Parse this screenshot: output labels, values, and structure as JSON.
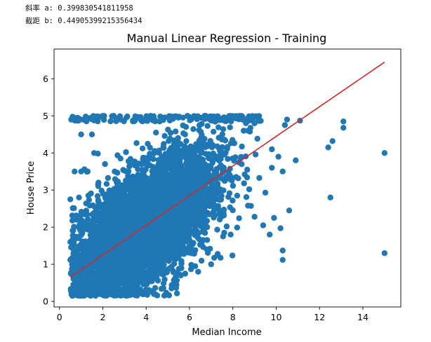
{
  "output": {
    "slope_line": "斜率 a: 0.399830541811958",
    "intercept_line": "截距 b: 0.44905399215356434"
  },
  "chart_data": {
    "type": "scatter",
    "title": "Manual Linear Regression - Training",
    "xlabel": "Median Income",
    "ylabel": "House Price",
    "xlim": [
      -0.25,
      15.75
    ],
    "ylim": [
      -0.15,
      6.8
    ],
    "xticks": [
      0,
      2,
      4,
      6,
      8,
      10,
      12,
      14
    ],
    "yticks": [
      0,
      1,
      2,
      3,
      4,
      5,
      6
    ],
    "point_color": "#1f77b4",
    "line_color": "#d62728",
    "regression_line": {
      "slope": 0.399830541811958,
      "intercept": 0.44905399215356434,
      "x": [
        0.5,
        15.0
      ]
    },
    "outliers": [
      [
        15.0,
        4.0
      ],
      [
        15.0,
        1.3
      ],
      [
        13.1,
        4.85
      ],
      [
        13.1,
        4.68
      ],
      [
        12.6,
        4.32
      ],
      [
        12.4,
        4.15
      ],
      [
        12.5,
        2.8
      ],
      [
        11.1,
        4.87
      ],
      [
        10.9,
        3.8
      ],
      [
        10.6,
        2.45
      ],
      [
        10.3,
        1.12
      ],
      [
        10.3,
        1.37
      ],
      [
        10.2,
        1.97
      ],
      [
        10.3,
        3.5
      ],
      [
        10.1,
        3.9
      ],
      [
        9.8,
        3.6
      ],
      [
        9.9,
        2.25
      ],
      [
        9.7,
        1.8
      ],
      [
        9.5,
        2.93
      ],
      [
        9.4,
        2.05
      ],
      [
        9.0,
        2.28
      ],
      [
        8.7,
        2.58
      ],
      [
        8.2,
        2.85
      ],
      [
        9.8,
        4.1
      ],
      [
        10.5,
        4.9
      ],
      [
        10.4,
        4.75
      ],
      [
        1.0,
        4.5
      ],
      [
        1.5,
        4.5
      ],
      [
        1.3,
        3.5
      ],
      [
        0.5,
        2.75
      ],
      [
        0.5,
        1.6
      ],
      [
        0.6,
        0.15
      ],
      [
        1.1,
        0.3
      ],
      [
        1.9,
        0.2
      ],
      [
        2.5,
        0.27
      ],
      [
        3.0,
        0.28
      ],
      [
        3.5,
        0.4
      ],
      [
        4.0,
        0.32
      ],
      [
        5.4,
        0.45
      ],
      [
        5.6,
        0.7
      ],
      [
        6.4,
        0.8
      ],
      [
        7.0,
        1.0
      ],
      [
        7.3,
        1.28
      ],
      [
        6.8,
        1.4
      ],
      [
        7.6,
        1.85
      ],
      [
        7.9,
        1.8
      ],
      [
        2.0,
        5.0
      ],
      [
        2.5,
        5.0
      ],
      [
        4.2,
        5.0
      ],
      [
        5.9,
        5.0
      ],
      [
        6.7,
        5.0
      ],
      [
        8.3,
        5.0
      ],
      [
        9.2,
        4.9
      ],
      [
        9.0,
        4.8
      ],
      [
        8.7,
        4.6
      ],
      [
        8.5,
        4.6
      ],
      [
        1.6,
        4.0
      ],
      [
        2.1,
        3.7
      ],
      [
        1.8,
        3.2
      ],
      [
        0.7,
        3.5
      ],
      [
        1.0,
        3.5
      ],
      [
        0.9,
        2.8
      ],
      [
        0.8,
        0.5
      ],
      [
        0.7,
        1.2
      ]
    ]
  }
}
